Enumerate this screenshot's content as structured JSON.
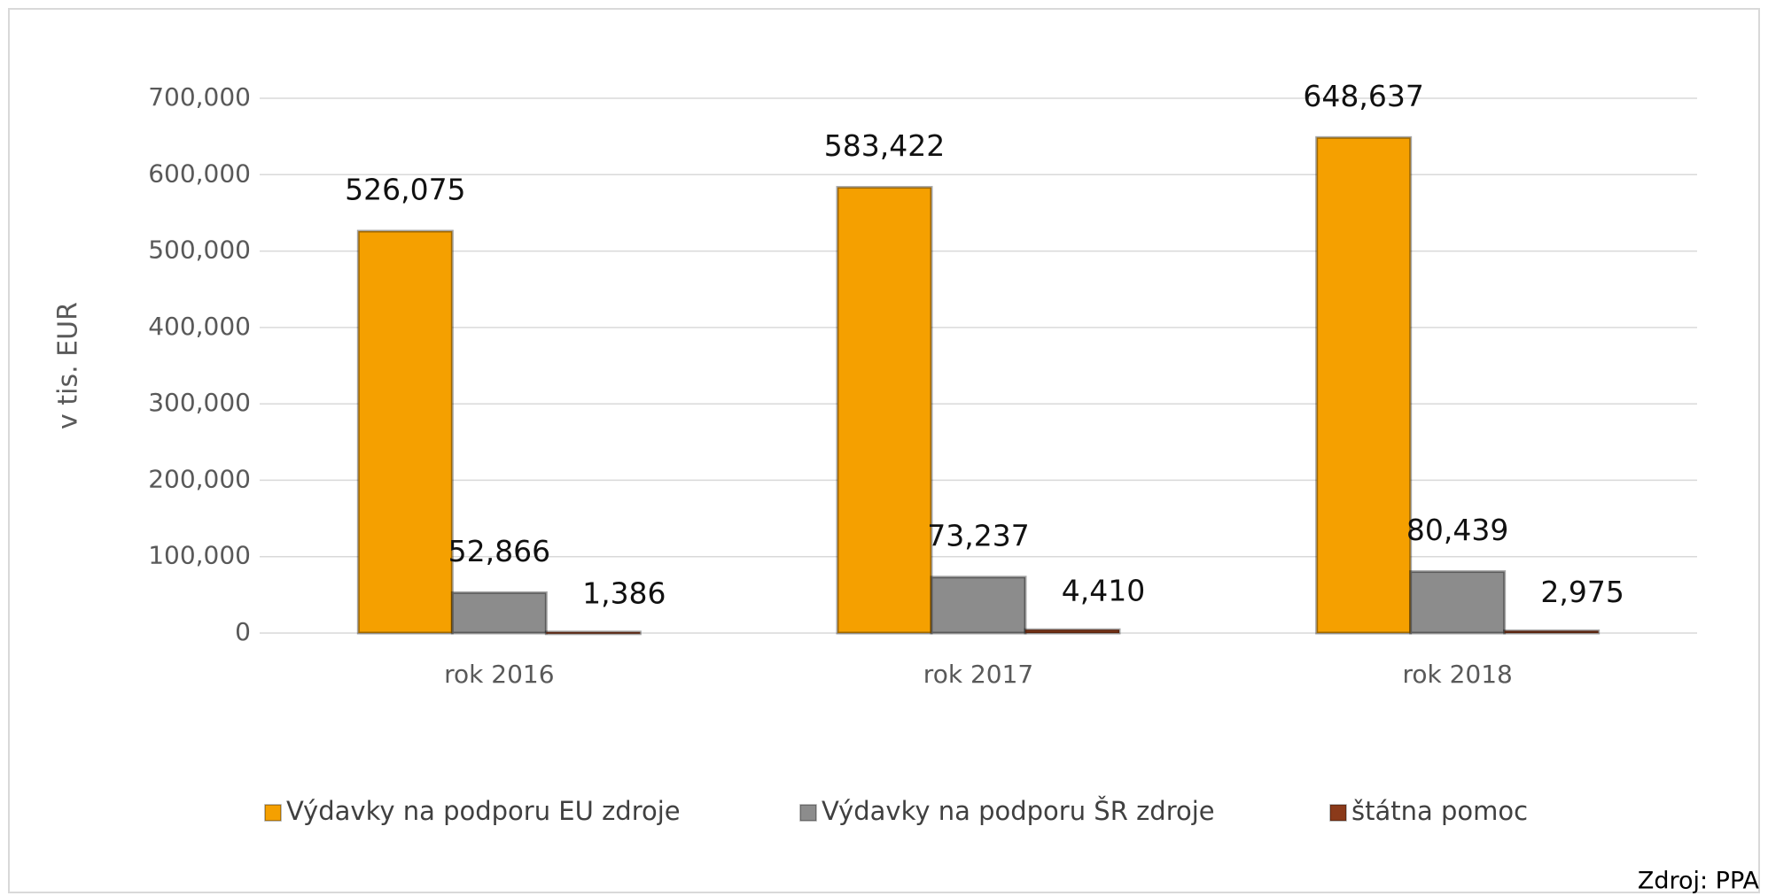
{
  "chart_data": {
    "type": "bar",
    "y_label": "v tis. EUR",
    "annotation": "Zdroj: PPA",
    "categories": [
      "rok 2016",
      "rok 2017",
      "rok 2018"
    ],
    "series": [
      {
        "name": "Výdavky na podporu EU zdroje",
        "color": "#f5a000",
        "values": [
          526075,
          583422,
          648637
        ],
        "value_labels": [
          "526,075",
          "583,422",
          "648,637"
        ]
      },
      {
        "name": "Výdavky na podporu ŠR zdroje",
        "color": "#8c8c8c",
        "values": [
          52866,
          73237,
          80439
        ],
        "value_labels": [
          "52,866",
          "73,237",
          "80,439"
        ]
      },
      {
        "name": "štátna pomoc",
        "color": "#8b3a1a",
        "values": [
          1386,
          4410,
          2975
        ],
        "value_labels": [
          "1,386",
          "4,410",
          "2,975"
        ]
      }
    ],
    "ylim": [
      0,
      700000
    ],
    "yticks": [
      0,
      {
        "value": 100000,
        "label": "100,000"
      },
      {
        "value": 200000,
        "label": "200,000"
      },
      {
        "value": 300000,
        "label": "300,000"
      },
      {
        "value": 400000,
        "label": "400,000"
      },
      {
        "value": 500000,
        "label": "500,000"
      },
      {
        "value": 600000,
        "label": "600,000"
      },
      {
        "value": 700000,
        "label": "700,000"
      }
    ],
    "grid": true,
    "legend": "bottom"
  }
}
